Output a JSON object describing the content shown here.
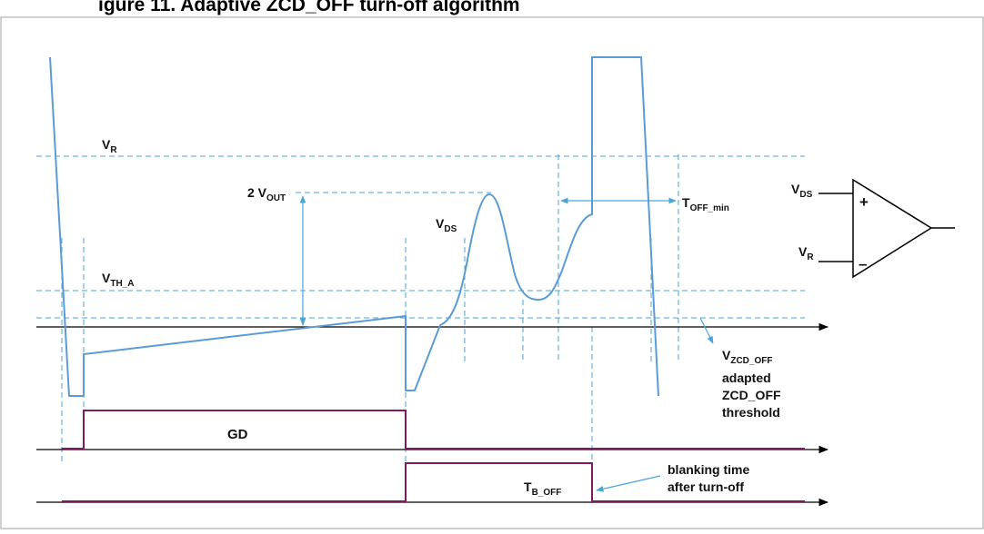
{
  "title": "igure 11. Adaptive ZCD_OFF turn-off algorithm",
  "labels": {
    "vr": {
      "main": "V",
      "sub": "R"
    },
    "vth_a": {
      "main": "V",
      "sub": "TH_A"
    },
    "two_vout": {
      "main": "2 V",
      "sub": "OUT"
    },
    "vds": {
      "main": "V",
      "sub": "DS"
    },
    "toff_min": {
      "main": "T",
      "sub": "OFF_min"
    },
    "vzcd_off": {
      "main": "V",
      "sub": "ZCD_OFF"
    },
    "adapted_line1": "adapted",
    "adapted_line2": "ZCD_OFF",
    "adapted_line3": "threshold",
    "gd": "GD",
    "tb_off": {
      "main": "T",
      "sub": "B_OFF"
    },
    "blanking_line1": "blanking time",
    "blanking_line2": "after turn-off"
  },
  "comparator": {
    "plus_input": {
      "main": "V",
      "sub": "DS"
    },
    "minus_input": {
      "main": "V",
      "sub": "R"
    },
    "plus_sign": "+",
    "minus_sign": "–"
  },
  "colors": {
    "waveform": "#5b9bd5",
    "dashed": "#4aa6d6",
    "gate": "#7b1c5c",
    "axis": "#000000",
    "frame": "#a0a0a0",
    "text": "#111111"
  }
}
